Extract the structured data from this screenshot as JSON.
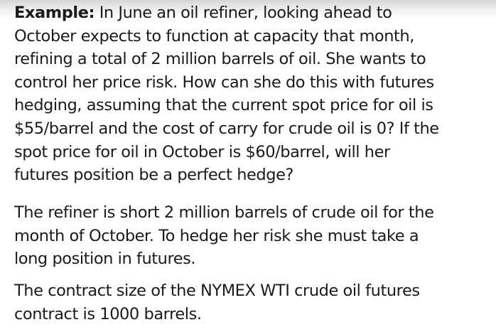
{
  "example": {
    "label": "Example:",
    "lines": [
      " In June an oil refiner, looking ahead to",
      "October expects to function at capacity that month,",
      "refining a total of 2 million barrels of oil. She wants to",
      "control her price risk. How can she do this with futures",
      "hedging, assuming that the current spot price for oil is",
      "$55/barrel and the cost of carry for crude oil is 0? If the",
      "spot price for oil in October is $60/barrel, will her",
      "futures position be a perfect hedge?"
    ]
  },
  "answer": {
    "lines": [
      "The refiner is short 2 million barrels of crude oil for the",
      "month of October. To hedge her risk she must take a",
      "long position in futures."
    ]
  },
  "contract": {
    "lines": [
      "The contract size of the NYMEX WTI crude oil futures",
      "contract is 1000 barrels."
    ]
  }
}
